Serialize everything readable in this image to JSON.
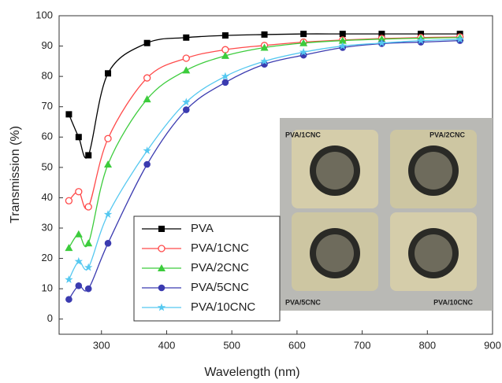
{
  "chart_data": {
    "type": "line",
    "xlabel": "Wavelength (nm)",
    "ylabel": "Transmission (%)",
    "x": [
      250,
      265,
      280,
      310,
      370,
      430,
      490,
      550,
      610,
      670,
      730,
      790,
      850
    ],
    "series": [
      {
        "name": "PVA",
        "color": "#000000",
        "marker": "square",
        "values": [
          67.5,
          60,
          54,
          81,
          91,
          92.8,
          93.5,
          93.8,
          94,
          94,
          94,
          94,
          94
        ]
      },
      {
        "name": "PVA/1CNC",
        "color": "#ff4a4a",
        "marker": "open-circle",
        "values": [
          39,
          42,
          37,
          59.5,
          79.5,
          86,
          88.8,
          90.2,
          91.3,
          92,
          92.5,
          92.8,
          93
        ]
      },
      {
        "name": "PVA/2CNC",
        "color": "#3ccc3c",
        "marker": "triangle",
        "values": [
          23.5,
          28,
          25,
          51,
          72.5,
          82,
          86.8,
          89.5,
          91,
          91.8,
          92.3,
          92.6,
          92.8
        ]
      },
      {
        "name": "PVA/5CNC",
        "color": "#3b3bb0",
        "marker": "circle",
        "values": [
          6.5,
          11,
          10,
          25,
          51,
          69,
          78,
          84,
          87,
          89.5,
          90.8,
          91.3,
          91.8
        ]
      },
      {
        "name": "PVA/10CNC",
        "color": "#55c8f0",
        "marker": "star",
        "values": [
          13,
          19,
          17,
          34.5,
          55.5,
          71.5,
          80,
          85,
          88,
          90,
          91,
          91.8,
          92.2
        ]
      }
    ],
    "xlim": [
      235,
      900
    ],
    "xticks": [
      300,
      400,
      500,
      600,
      700,
      800,
      900
    ],
    "ylim": [
      -5,
      100
    ],
    "yticks": [
      0,
      10,
      20,
      30,
      40,
      50,
      60,
      70,
      80,
      90,
      100
    ],
    "legend": "lower left",
    "inset_labels": [
      "PVA/1CNC",
      "PVA/2CNC",
      "PVA/5CNC",
      "PVA/10CNC"
    ]
  }
}
